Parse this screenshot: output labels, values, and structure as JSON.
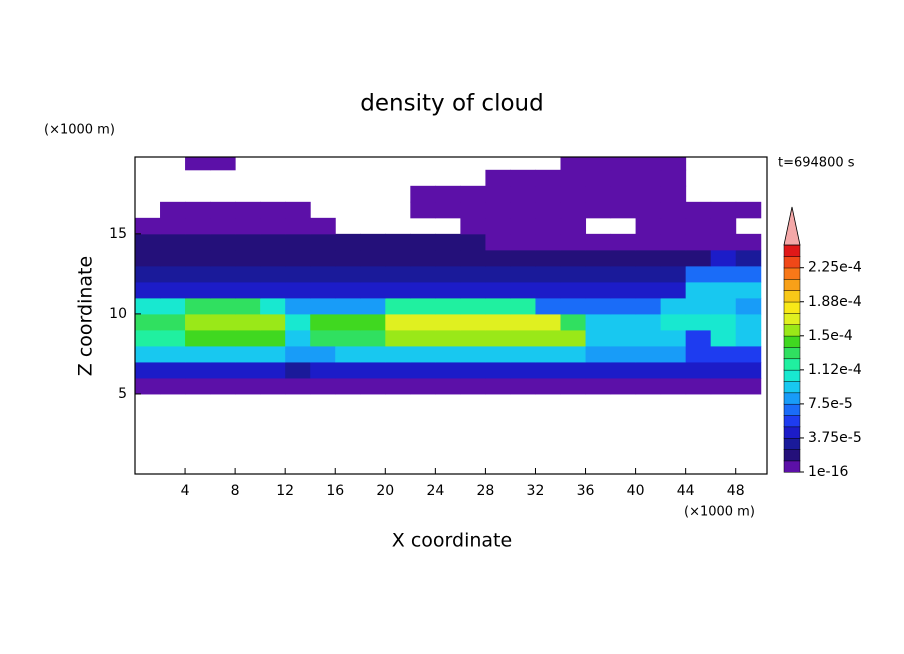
{
  "chart_data": {
    "type": "heatmap",
    "title": "density of cloud",
    "x_label": "X coordinate",
    "y_label": "Z coordinate",
    "x_unit": "(×1000 m)",
    "y_unit": "(×1000 m)",
    "annotation": "t=694800 s",
    "xlim": [
      0,
      50.5
    ],
    "ylim": [
      0,
      19.8
    ],
    "xticks": [
      4,
      8,
      12,
      16,
      20,
      24,
      28,
      32,
      36,
      40,
      44,
      48
    ],
    "yticks": [
      5,
      10,
      15
    ],
    "x": [
      1,
      3,
      5,
      7,
      9,
      11,
      13,
      15,
      17,
      19,
      21,
      23,
      25,
      27,
      29,
      31,
      33,
      35,
      37,
      39,
      41,
      43,
      45,
      47,
      49
    ],
    "z": [
      5.5,
      6.5,
      7.5,
      8.5,
      9.5,
      10.5,
      11.5,
      12.5,
      13.5,
      14.5,
      15.5,
      16.5,
      17.5,
      18.5,
      19.5
    ],
    "values": [
      [
        1e-05,
        1e-05,
        1e-05,
        1e-05,
        1e-05,
        1e-05,
        1e-05,
        1e-05,
        1e-05,
        1e-05,
        1e-05,
        1e-05,
        1e-05,
        1e-05,
        1e-05,
        1e-05,
        1e-05,
        1e-05,
        1e-05,
        1e-05,
        1e-05,
        1e-05,
        1e-05,
        1e-05,
        1e-05
      ],
      [
        4e-05,
        4e-05,
        4e-05,
        4e-05,
        4e-05,
        4e-05,
        3e-05,
        4e-05,
        4e-05,
        4e-05,
        4e-05,
        4e-05,
        4e-05,
        4e-05,
        4e-05,
        4e-05,
        4e-05,
        4e-05,
        4e-05,
        4e-05,
        4e-05,
        4e-05,
        4e-05,
        4e-05,
        4e-05
      ],
      [
        9e-05,
        9e-05,
        9e-05,
        9e-05,
        9e-05,
        9e-05,
        8e-05,
        8e-05,
        0.0001,
        0.0001,
        0.0001,
        0.0001,
        0.0001,
        0.0001,
        0.0001,
        0.0001,
        0.0001,
        0.0001,
        8e-05,
        8e-05,
        8e-05,
        8e-05,
        6e-05,
        6e-05,
        6e-05
      ],
      [
        0.00012,
        0.00012,
        0.00015,
        0.00015,
        0.00015,
        0.00015,
        0.0001,
        0.00013,
        0.00013,
        0.00013,
        0.00016,
        0.00016,
        0.00016,
        0.00016,
        0.00016,
        0.00016,
        0.00016,
        0.00016,
        0.0001,
        0.0001,
        0.0001,
        0.0001,
        6e-05,
        0.00011,
        9e-05
      ],
      [
        0.00013,
        0.00013,
        0.00016,
        0.00016,
        0.00016,
        0.00016,
        0.00011,
        0.00014,
        0.00014,
        0.00014,
        0.000165,
        0.000165,
        0.000165,
        0.000165,
        0.000165,
        0.000165,
        0.000165,
        0.00013,
        9e-05,
        9e-05,
        9e-05,
        0.00011,
        0.00011,
        0.00011,
        9e-05
      ],
      [
        0.00011,
        0.00011,
        0.00013,
        0.00013,
        0.00013,
        0.00011,
        8e-05,
        8e-05,
        8e-05,
        8e-05,
        0.00012,
        0.00012,
        0.00012,
        0.00012,
        0.00012,
        0.00012,
        7e-05,
        7e-05,
        7e-05,
        7e-05,
        7e-05,
        0.0001,
        0.0001,
        0.0001,
        8e-05
      ],
      [
        5e-05,
        5e-05,
        5e-05,
        5e-05,
        5e-05,
        5e-05,
        5e-05,
        5e-05,
        5e-05,
        5e-05,
        5e-05,
        5e-05,
        5e-05,
        5e-05,
        5e-05,
        5e-05,
        5e-05,
        5e-05,
        5e-05,
        5e-05,
        5e-05,
        5e-05,
        9e-05,
        9e-05,
        9e-05
      ],
      [
        3e-05,
        3e-05,
        3e-05,
        3e-05,
        3e-05,
        3e-05,
        3e-05,
        3e-05,
        3e-05,
        3e-05,
        3e-05,
        3e-05,
        3e-05,
        3e-05,
        3e-05,
        3e-05,
        3e-05,
        3e-05,
        3e-05,
        3e-05,
        3e-05,
        3e-05,
        7e-05,
        7e-05,
        7e-05
      ],
      [
        2e-05,
        2e-05,
        2e-05,
        2e-05,
        2e-05,
        2e-05,
        2e-05,
        2e-05,
        2e-05,
        2e-05,
        2e-05,
        2e-05,
        2e-05,
        2e-05,
        2e-05,
        2e-05,
        2e-05,
        2e-05,
        2e-05,
        2e-05,
        2e-05,
        2e-05,
        2e-05,
        5e-05,
        3e-05
      ],
      [
        1.5e-05,
        1.5e-05,
        1.5e-05,
        1.5e-05,
        1.5e-05,
        1.5e-05,
        1.5e-05,
        1.5e-05,
        1.5e-05,
        1.5e-05,
        1.5e-05,
        1.5e-05,
        1.5e-05,
        1.5e-05,
        1e-05,
        1e-05,
        1e-05,
        1e-05,
        1e-05,
        1e-05,
        1e-05,
        1e-05,
        1e-05,
        1e-05,
        1e-05
      ],
      [
        5e-06,
        5e-06,
        5e-06,
        5e-06,
        5e-06,
        5e-06,
        5e-06,
        5e-06,
        null,
        null,
        null,
        null,
        null,
        5e-06,
        5e-06,
        5e-06,
        5e-06,
        5e-06,
        null,
        null,
        5e-06,
        5e-06,
        5e-06,
        5e-06,
        null
      ],
      [
        null,
        5e-06,
        5e-06,
        5e-06,
        5e-06,
        5e-06,
        5e-06,
        null,
        null,
        null,
        null,
        5e-06,
        5e-06,
        5e-06,
        5e-06,
        5e-06,
        5e-06,
        5e-06,
        5e-06,
        5e-06,
        5e-06,
        5e-06,
        5e-06,
        5e-06,
        5e-06
      ],
      [
        null,
        null,
        null,
        null,
        null,
        null,
        null,
        null,
        null,
        null,
        null,
        5e-06,
        5e-06,
        5e-06,
        5e-06,
        5e-06,
        5e-06,
        5e-06,
        5e-06,
        5e-06,
        5e-06,
        5e-06,
        null,
        null,
        null
      ],
      [
        null,
        null,
        null,
        null,
        null,
        null,
        null,
        null,
        null,
        null,
        null,
        null,
        null,
        null,
        5e-06,
        5e-06,
        5e-06,
        5e-06,
        5e-06,
        5e-06,
        5e-06,
        5e-06,
        null,
        null,
        null
      ],
      [
        null,
        null,
        5e-06,
        5e-06,
        null,
        null,
        null,
        null,
        null,
        null,
        null,
        null,
        null,
        null,
        null,
        null,
        null,
        5e-06,
        5e-06,
        5e-06,
        5e-06,
        5e-06,
        null,
        null,
        null
      ]
    ],
    "clim": [
      1e-16,
      0.00025
    ],
    "colors": [
      "#5c10a8",
      "#24107a",
      "#1a1a9a",
      "#1c1cc8",
      "#1e3cf0",
      "#1a6cf8",
      "#189cf8",
      "#18c8f0",
      "#18e8d0",
      "#20f0a0",
      "#30e060",
      "#40d820",
      "#9ae818",
      "#e0f020",
      "#f8e818",
      "#f8c818",
      "#f8a018",
      "#f87818",
      "#f04818",
      "#e01818"
    ],
    "extend_color": "#f4a8a8",
    "cticks": [
      1e-16,
      {
        "value": 3.75e-05,
        "label": "3.75e-5"
      },
      {
        "value": 7.5e-05,
        "label": "7.5e-5"
      },
      {
        "value": 0.0001125,
        "label": "1.12e-4"
      },
      {
        "value": 0.00015,
        "label": "1.5e-4"
      },
      {
        "value": 0.0001875,
        "label": "1.88e-4"
      },
      {
        "value": 0.000225,
        "label": "2.25e-4"
      }
    ]
  }
}
